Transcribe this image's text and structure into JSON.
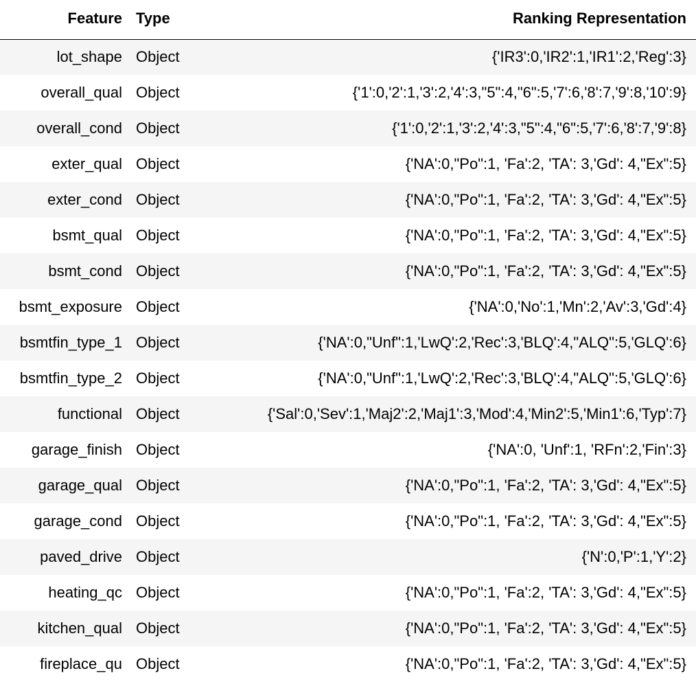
{
  "table": {
    "headers": {
      "feature": "Feature",
      "type": "Type",
      "rank": "Ranking Representation"
    },
    "rows": [
      {
        "feature": "lot_shape",
        "type": "Object",
        "rank": "{'IR3':0,'IR2':1,'IR1':2,'Reg':3}"
      },
      {
        "feature": "overall_qual",
        "type": "Object",
        "rank": "{'1':0,'2':1,'3':2,'4':3,\"5\":4,\"6\":5,'7':6,'8':7,'9':8,'10':9}"
      },
      {
        "feature": "overall_cond",
        "type": "Object",
        "rank": "{'1':0,'2':1,'3':2,'4':3,\"5\":4,\"6\":5,'7':6,'8':7,'9':8}"
      },
      {
        "feature": "exter_qual",
        "type": "Object",
        "rank": "{'NA':0,\"Po\":1, 'Fa':2, 'TA': 3,'Gd': 4,\"Ex\":5}"
      },
      {
        "feature": "exter_cond",
        "type": "Object",
        "rank": "{'NA':0,\"Po\":1, 'Fa':2, 'TA': 3,'Gd': 4,\"Ex\":5}"
      },
      {
        "feature": "bsmt_qual",
        "type": "Object",
        "rank": "{'NA':0,\"Po\":1, 'Fa':2, 'TA': 3,'Gd': 4,\"Ex\":5}"
      },
      {
        "feature": "bsmt_cond",
        "type": "Object",
        "rank": "{'NA':0,\"Po\":1, 'Fa':2, 'TA': 3,'Gd': 4,\"Ex\":5}"
      },
      {
        "feature": "bsmt_exposure",
        "type": "Object",
        "rank": "{'NA':0,'No':1,'Mn':2,'Av':3,'Gd':4}"
      },
      {
        "feature": "bsmtfin_type_1",
        "type": "Object",
        "rank": "{'NA':0,\"Unf\":1,'LwQ':2,'Rec':3,'BLQ':4,\"ALQ\":5,'GLQ':6}"
      },
      {
        "feature": "bsmtfin_type_2",
        "type": "Object",
        "rank": "{'NA':0,\"Unf\":1,'LwQ':2,'Rec':3,'BLQ':4,\"ALQ\":5,'GLQ':6}"
      },
      {
        "feature": "functional",
        "type": "Object",
        "rank": "{'Sal':0,'Sev':1,'Maj2':2,'Maj1':3,'Mod':4,'Min2':5,'Min1':6,'Typ':7}"
      },
      {
        "feature": "garage_finish",
        "type": "Object",
        "rank": "{'NA':0, 'Unf':1, 'RFn':2,'Fin':3}"
      },
      {
        "feature": "garage_qual",
        "type": "Object",
        "rank": "{'NA':0,\"Po\":1, 'Fa':2, 'TA': 3,'Gd': 4,\"Ex\":5}"
      },
      {
        "feature": "garage_cond",
        "type": "Object",
        "rank": "{'NA':0,\"Po\":1, 'Fa':2, 'TA': 3,'Gd': 4,\"Ex\":5}"
      },
      {
        "feature": "paved_drive",
        "type": "Object",
        "rank": "{'N':0,'P':1,'Y':2}"
      },
      {
        "feature": "heating_qc",
        "type": "Object",
        "rank": "{'NA':0,\"Po\":1, 'Fa':2, 'TA': 3,'Gd': 4,\"Ex\":5}"
      },
      {
        "feature": "kitchen_qual",
        "type": "Object",
        "rank": "{'NA':0,\"Po\":1, 'Fa':2, 'TA': 3,'Gd': 4,\"Ex\":5}"
      },
      {
        "feature": "fireplace_qu",
        "type": "Object",
        "rank": "{'NA':0,\"Po\":1, 'Fa':2, 'TA': 3,'Gd': 4,\"Ex\":5}"
      }
    ]
  },
  "colors": {
    "stripe": "#f5f5f5",
    "background": "#ffffff",
    "text": "#000000",
    "header_rule": "#000000"
  }
}
